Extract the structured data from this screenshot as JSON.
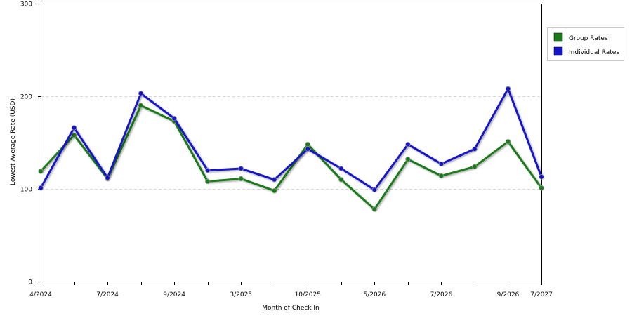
{
  "chart_data": {
    "type": "line",
    "xlabel": "Month of Check In",
    "ylabel": "Lowest Average Rate (USD)",
    "ylim": [
      0,
      300
    ],
    "y_ticks": [
      0,
      100,
      200,
      300
    ],
    "grid": "horizontal dashed at 100, 200",
    "legend_position": "right",
    "x_tick_labels": [
      "4/2024",
      "7/2024",
      "9/2024",
      "3/2025",
      "10/2025",
      "5/2026",
      "7/2026",
      "9/2026",
      "7/2027"
    ],
    "x_tick_indices": [
      0,
      2,
      4,
      6,
      8,
      10,
      12,
      14,
      15
    ],
    "point_count": 16,
    "series": [
      {
        "name": "Group Rates",
        "color": "#1a7a1a",
        "values": [
          119,
          158,
          111,
          190,
          173,
          108,
          111,
          98,
          148,
          110,
          78,
          132,
          114,
          124,
          151,
          101
        ]
      },
      {
        "name": "Individual Rates",
        "color": "#1414c8",
        "values": [
          101,
          166,
          112,
          203,
          176,
          120,
          122,
          110,
          143,
          122,
          99,
          148,
          127,
          143,
          208,
          113
        ]
      }
    ]
  }
}
